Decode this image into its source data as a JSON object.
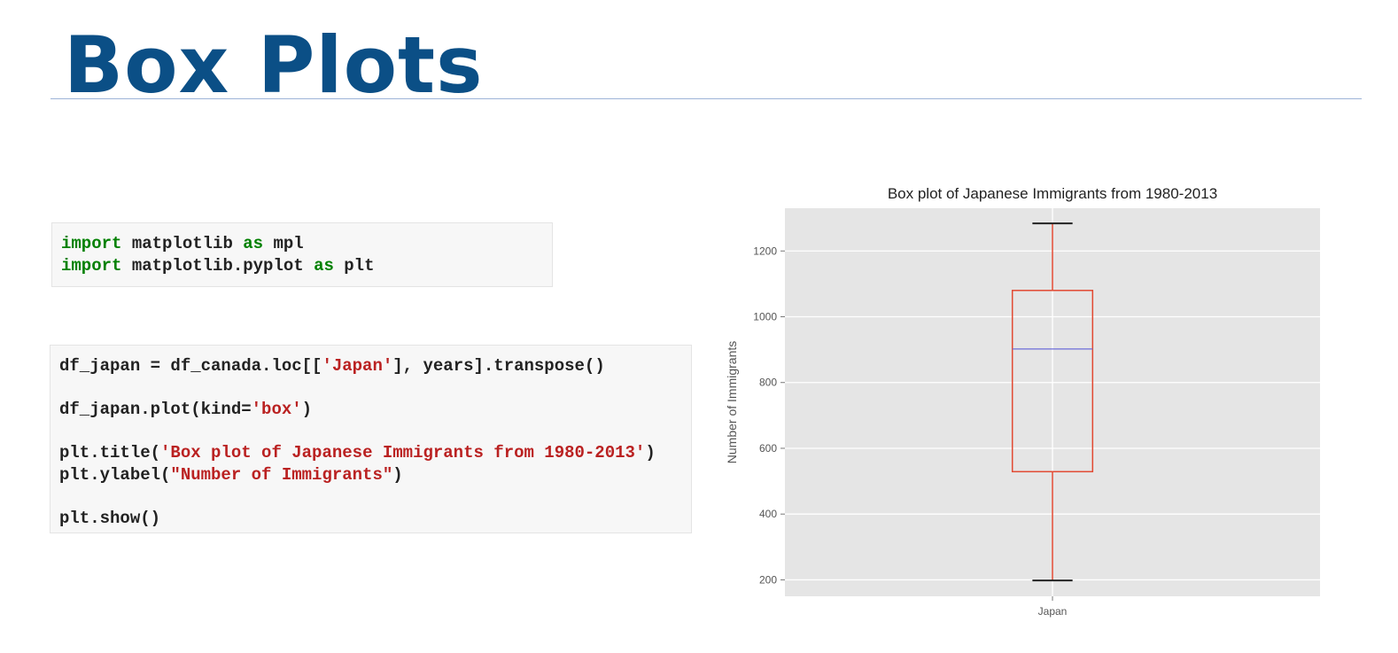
{
  "slide": {
    "title": "Box Plots"
  },
  "code_cells": [
    {
      "lines": [
        [
          {
            "t": "import",
            "c": "kw"
          },
          {
            "t": " matplotlib ",
            "c": ""
          },
          {
            "t": "as",
            "c": "kw"
          },
          {
            "t": " mpl",
            "c": ""
          }
        ],
        [
          {
            "t": "import",
            "c": "kw"
          },
          {
            "t": " matplotlib.pyplot ",
            "c": ""
          },
          {
            "t": "as",
            "c": "kw"
          },
          {
            "t": " plt",
            "c": ""
          }
        ]
      ]
    },
    {
      "lines": [
        [
          {
            "t": "df_japan = df_canada.loc[[",
            "c": ""
          },
          {
            "t": "'Japan'",
            "c": "str"
          },
          {
            "t": "], years].transpose()",
            "c": ""
          }
        ],
        [],
        [
          {
            "t": "df_japan.plot(kind=",
            "c": ""
          },
          {
            "t": "'box'",
            "c": "str"
          },
          {
            "t": ")",
            "c": ""
          }
        ],
        [],
        [
          {
            "t": "plt.title(",
            "c": ""
          },
          {
            "t": "'Box plot of Japanese Immigrants from 1980-2013'",
            "c": "str"
          },
          {
            "t": ")",
            "c": ""
          }
        ],
        [
          {
            "t": "plt.ylabel(",
            "c": ""
          },
          {
            "t": "\"Number of Immigrants\"",
            "c": "str"
          },
          {
            "t": ")",
            "c": ""
          }
        ],
        [],
        [
          {
            "t": "plt.show()",
            "c": ""
          }
        ]
      ]
    }
  ],
  "chart_data": {
    "type": "box",
    "title": "Box plot of Japanese Immigrants from 1980-2013",
    "xlabel": "",
    "ylabel": "Number of Immigrants",
    "categories": [
      "Japan"
    ],
    "boxes": [
      {
        "name": "Japan",
        "whislo": 198,
        "q1": 529,
        "median": 902,
        "q3": 1080,
        "whishi": 1284
      }
    ],
    "ylim": [
      150,
      1330
    ],
    "yticks": [
      200,
      400,
      600,
      800,
      1000,
      1200
    ],
    "grid": true,
    "colors": {
      "plot_bg": "#e5e5e5",
      "grid": "#ffffff",
      "box": "#e24a33",
      "median": "#6d6dd9",
      "whisker_cap": "#222222",
      "text": "#555555",
      "title": "#222222"
    }
  }
}
